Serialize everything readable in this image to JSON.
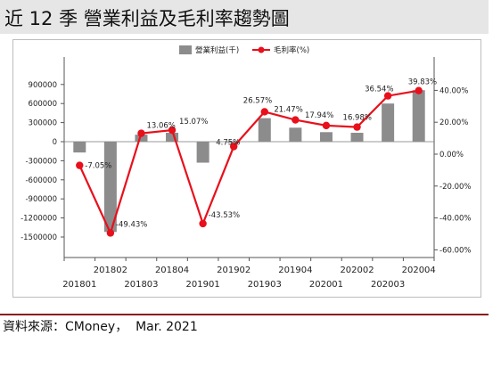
{
  "header": {
    "title": "近 12 季  營業利益及毛利率趨勢圖"
  },
  "footer": {
    "source": "資料來源：CMoney，  Mar. 2021"
  },
  "chart_data": {
    "type": "bar+line",
    "categories": [
      "201801",
      "201802",
      "201803",
      "201804",
      "201901",
      "201902",
      "201903",
      "201904",
      "202001",
      "202002",
      "202003",
      "202004"
    ],
    "x_tick_labels_top": [
      "201802",
      "201804",
      "201902",
      "201904",
      "202002",
      "202004"
    ],
    "x_tick_labels_bottom": [
      "201801",
      "201803",
      "201901",
      "201903",
      "202001",
      "202003"
    ],
    "legend": {
      "position": "top-center",
      "bar_label": "營業利益(千)",
      "line_label": "毛利率(%)"
    },
    "series": [
      {
        "name": "營業利益(千)",
        "type": "bar",
        "axis": "left",
        "color": "#8c8c8c",
        "values": [
          -170000,
          -1420000,
          110000,
          140000,
          -330000,
          -20000,
          370000,
          220000,
          150000,
          140000,
          600000,
          810000
        ]
      },
      {
        "name": "毛利率(%)",
        "type": "line",
        "axis": "right",
        "color": "#e8101b",
        "values": [
          -7.05,
          -49.43,
          13.06,
          15.07,
          -43.53,
          4.75,
          26.57,
          21.47,
          17.94,
          16.98,
          36.54,
          39.83
        ],
        "data_labels": [
          "-7.05%",
          "-49.43%",
          "13.06%",
          "15.07%",
          "-43.53%",
          "4.75%",
          "26.57%",
          "21.47%",
          "17.94%",
          "16.98%",
          "36.54%",
          "39.83%"
        ]
      }
    ],
    "y_left": {
      "min": -1700000,
      "max": 1000000,
      "ticks": [
        900000,
        600000,
        300000,
        0,
        -300000,
        -600000,
        -900000,
        -1200000,
        -1500000
      ],
      "tick_labels": [
        "900000",
        "600000",
        "300000",
        "0",
        "-300000",
        "-600000",
        "-900000",
        "-1200000",
        "-1500000"
      ]
    },
    "y_right": {
      "min": -64,
      "max": 48,
      "ticks": [
        40,
        20,
        0,
        -20,
        -40,
        -60
      ],
      "tick_labels": [
        "40.00%",
        "20.00%",
        "0.00%",
        "-20.00%",
        "-40.00%",
        "-60.00%"
      ]
    },
    "grid": false
  }
}
